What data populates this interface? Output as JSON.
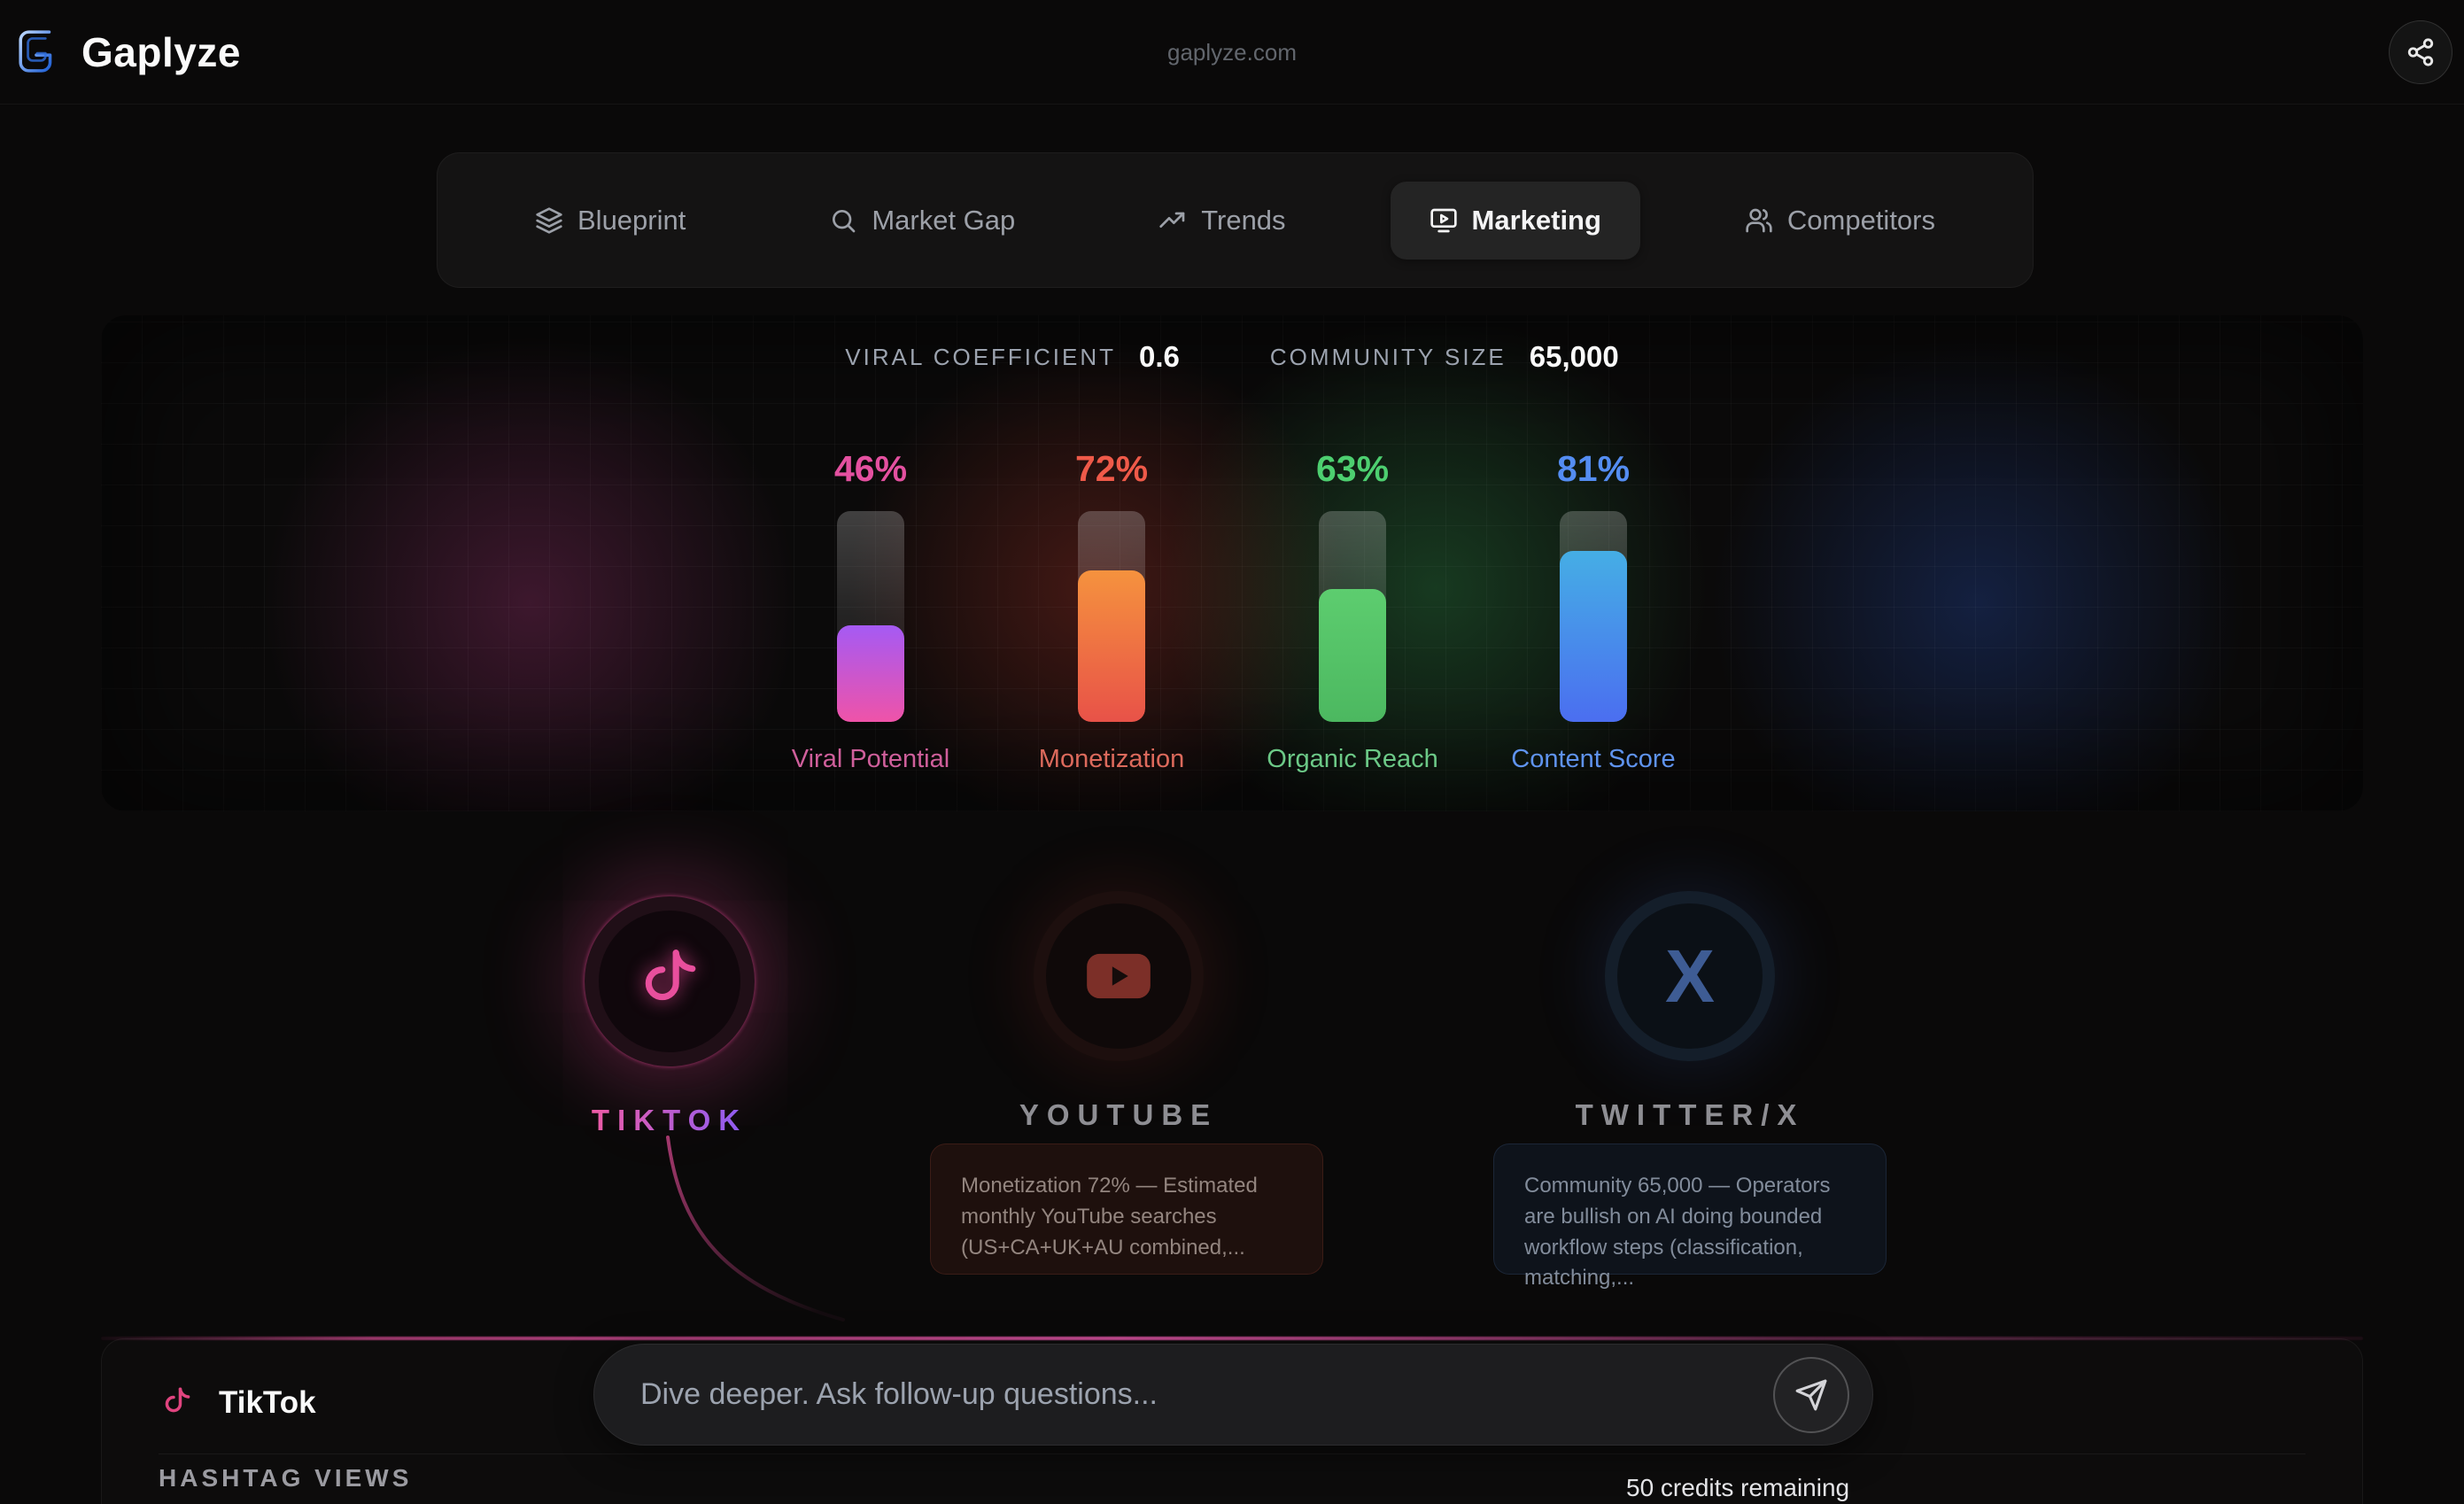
{
  "header": {
    "brand": "Gaplyze",
    "domain": "gaplyze.com",
    "share_icon": "share-icon",
    "logo_icon": "gaplyze-logo-icon",
    "accent_color": "#3b82f6"
  },
  "tabs": [
    {
      "label": "Blueprint",
      "icon": "layers-icon",
      "active": false
    },
    {
      "label": "Market Gap",
      "icon": "search-icon",
      "active": false
    },
    {
      "label": "Trends",
      "icon": "trending-up-icon",
      "active": false
    },
    {
      "label": "Marketing",
      "icon": "monitor-play-icon",
      "active": true
    },
    {
      "label": "Competitors",
      "icon": "users-icon",
      "active": false
    }
  ],
  "metrics": {
    "viral_label": "VIRAL COEFFICIENT",
    "viral_value": "0.6",
    "community_label": "COMMUNITY SIZE",
    "community_value": "65,000"
  },
  "gauges": [
    {
      "label": "Viral Potential",
      "percent": "46%",
      "value": 46,
      "color_top": "#a55af4",
      "color_bottom": "#ef53a8",
      "percent_color": "#e450a0",
      "label_color": "#cf5f9b"
    },
    {
      "label": "Monetization",
      "percent": "72%",
      "value": 72,
      "color_top": "#f5923e",
      "color_bottom": "#e85248",
      "percent_color": "#ef5a49",
      "label_color": "#dd6a5c"
    },
    {
      "label": "Organic Reach",
      "percent": "63%",
      "value": 63,
      "color_top": "#5dcd6f",
      "color_bottom": "#4cb860",
      "percent_color": "#4dcf70",
      "label_color": "#6cc987"
    },
    {
      "label": "Content Score",
      "percent": "81%",
      "value": 81,
      "color_top": "#45aee5",
      "color_bottom": "#4b6ef0",
      "percent_color": "#548df2",
      "label_color": "#5f93ee"
    }
  ],
  "platforms": [
    {
      "name": "TIKTOK",
      "icon": "tiktok-icon",
      "active": true
    },
    {
      "name": "YOUTUBE",
      "icon": "youtube-icon",
      "active": false
    },
    {
      "name": "TWITTER/X",
      "icon": "x-icon",
      "active": false
    }
  ],
  "tooltips": [
    {
      "text": "Monetization 72% — Estimated monthly YouTube searches (US+CA+UK+AU combined,..."
    },
    {
      "text": "Community 65,000 — Operators are bullish on AI doing bounded workflow steps (classification, matching,..."
    }
  ],
  "bottom": {
    "platform_name": "TikTok",
    "platform_icon": "tiktok-icon",
    "section_label": "HASHTAG VIEWS",
    "input_placeholder": "Dive deeper. Ask follow-up questions...",
    "send_icon": "send-icon",
    "credits": "50 credits remaining"
  }
}
